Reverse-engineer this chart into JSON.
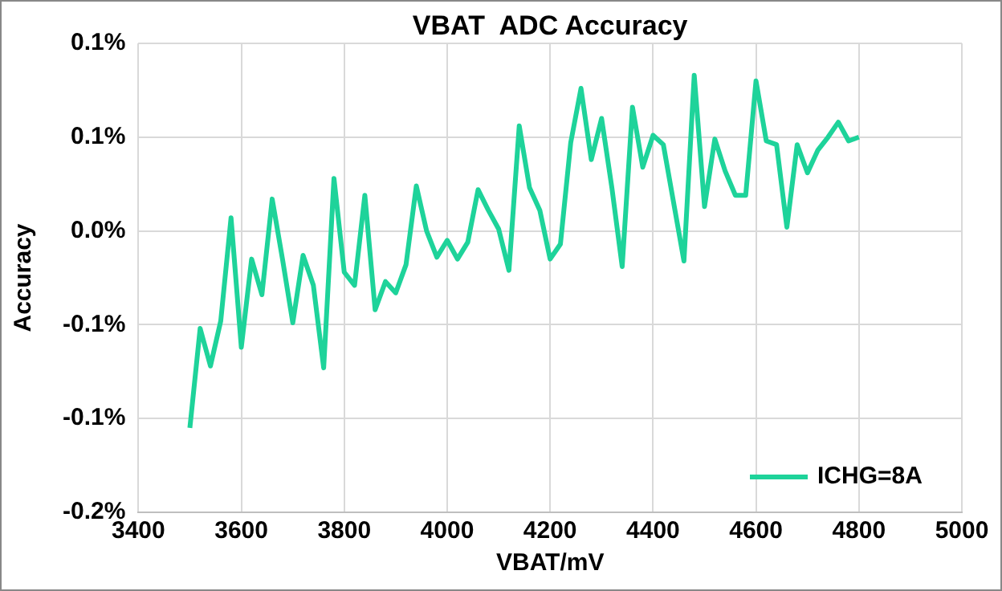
{
  "chart_data": {
    "type": "line",
    "title": "VBAT  ADC Accuracy",
    "xlabel": "VBAT/mV",
    "ylabel": "Accuracy",
    "x": [
      3500,
      3520,
      3540,
      3560,
      3580,
      3600,
      3620,
      3640,
      3660,
      3680,
      3700,
      3720,
      3740,
      3760,
      3780,
      3800,
      3820,
      3840,
      3860,
      3880,
      3900,
      3920,
      3940,
      3960,
      3980,
      4000,
      4020,
      4040,
      4060,
      4080,
      4100,
      4120,
      4140,
      4160,
      4180,
      4200,
      4220,
      4240,
      4260,
      4280,
      4300,
      4320,
      4340,
      4360,
      4380,
      4400,
      4420,
      4440,
      4460,
      4480,
      4500,
      4520,
      4540,
      4560,
      4580,
      4600,
      4620,
      4640,
      4660,
      4680,
      4700,
      4720,
      4740,
      4760,
      4780,
      4800
    ],
    "series": [
      {
        "name": "ICHG=8A",
        "color": "#1ed39a",
        "values": [
          -0.105,
          -0.052,
          -0.072,
          -0.048,
          0.007,
          -0.062,
          -0.015,
          -0.034,
          0.017,
          -0.015,
          -0.049,
          -0.013,
          -0.029,
          -0.073,
          0.028,
          -0.022,
          -0.029,
          0.019,
          -0.042,
          -0.027,
          -0.033,
          -0.018,
          0.024,
          0.0,
          -0.014,
          -0.005,
          -0.015,
          -0.006,
          0.022,
          0.011,
          0.001,
          -0.021,
          0.056,
          0.023,
          0.011,
          -0.015,
          -0.007,
          0.047,
          0.076,
          0.038,
          0.06,
          0.023,
          -0.019,
          0.066,
          0.034,
          0.051,
          0.046,
          0.015,
          -0.016,
          0.083,
          0.013,
          0.049,
          0.032,
          0.019,
          0.019,
          0.08,
          0.048,
          0.046,
          0.002,
          0.046,
          0.031,
          0.043,
          0.05,
          0.058,
          0.048,
          0.05
        ]
      }
    ],
    "xlim": [
      3400,
      5000
    ],
    "xticks": [
      3400,
      3600,
      3800,
      4000,
      4200,
      4400,
      4600,
      4800,
      5000
    ],
    "ylim": [
      -0.15,
      0.1
    ],
    "yticks": [
      {
        "value": 0.1,
        "label": "0.1%"
      },
      {
        "value": 0.05,
        "label": "0.1%"
      },
      {
        "value": 0,
        "label": "0.0%"
      },
      {
        "value": -0.05,
        "label": "-0.1%"
      },
      {
        "value": -0.1,
        "label": "-0.1%"
      },
      {
        "value": -0.15,
        "label": "-0.2%"
      }
    ],
    "grid": true,
    "legend": "bottom right",
    "marker": "none",
    "line_style": "solid"
  }
}
